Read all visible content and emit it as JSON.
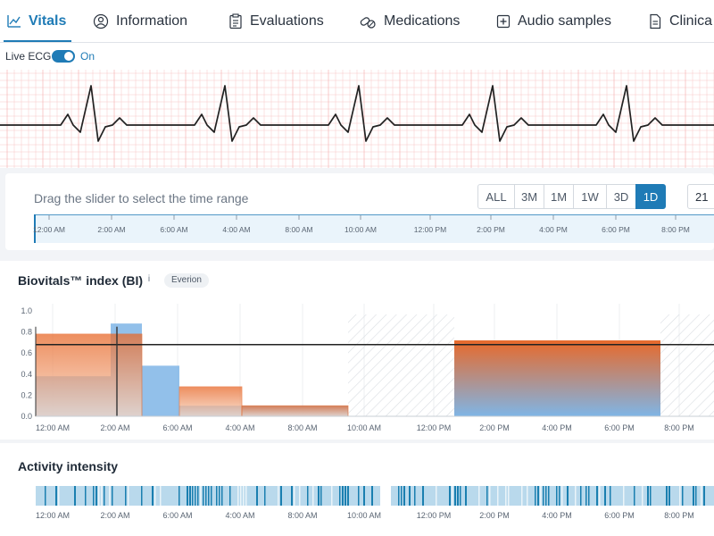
{
  "tabs": [
    {
      "label": "Vitals",
      "icon": "chart-line-icon",
      "active": true
    },
    {
      "label": "Information",
      "icon": "user-circle-icon",
      "active": false
    },
    {
      "label": "Evaluations",
      "icon": "clipboard-icon",
      "active": false
    },
    {
      "label": "Medications",
      "icon": "pills-icon",
      "active": false
    },
    {
      "label": "Audio samples",
      "icon": "audio-plus-icon",
      "active": false
    },
    {
      "label": "Clinica",
      "icon": "document-icon",
      "active": false
    }
  ],
  "live_ecg": {
    "label": "Live ECG",
    "state": "On",
    "enabled": true
  },
  "ecg_beats": 5,
  "range": {
    "hint": "Drag the slider to select the time range",
    "buttons": [
      "ALL",
      "3M",
      "1M",
      "1W",
      "3D",
      "1D"
    ],
    "active": "1D",
    "date_value": "21"
  },
  "time_axis": [
    "12:00 AM",
    "2:00 AM",
    "6:00 AM",
    "4:00 AM",
    "8:00 AM",
    "10:00 AM",
    "12:00 PM",
    "2:00 PM",
    "4:00 PM",
    "6:00 PM",
    "8:00 PM"
  ],
  "biovitals": {
    "title": "Biovitals™ index (BI)",
    "info": "i",
    "badge": "Everion",
    "chart_data": {
      "type": "bar",
      "y_ticks": [
        "1.0",
        "0.8",
        "0.6",
        "0.4",
        "0.2",
        "0.0"
      ],
      "ylim": [
        0,
        1.0
      ],
      "threshold": 0.68,
      "x_labels": [
        "12:00 AM",
        "2:00 AM",
        "6:00 AM",
        "4:00 AM",
        "8:00 AM",
        "10:00 AM",
        "12:00 PM",
        "2:00 PM",
        "4:00 PM",
        "6:00 PM",
        "8:00 PM"
      ],
      "blue_bars": [
        {
          "x0": 0,
          "x1": 1.2,
          "value": 0.38
        },
        {
          "x0": 1.2,
          "x1": 1.7,
          "value": 0.88
        },
        {
          "x0": 1.7,
          "x1": 2.3,
          "value": 0.48
        },
        {
          "x0": 2.3,
          "x1": 5.0,
          "value": 0.1
        },
        {
          "x0": 6.7,
          "x1": 10.0,
          "value": 0.7
        }
      ],
      "orange_bars": [
        {
          "x0": 0,
          "x1": 1.7,
          "value": 0.78
        },
        {
          "x0": 2.3,
          "x1": 3.3,
          "value": 0.28
        },
        {
          "x0": 3.3,
          "x1": 5.0,
          "value": 0.1
        },
        {
          "x0": 6.7,
          "x1": 10.0,
          "value": 0.72
        }
      ],
      "no_data": [
        {
          "x0": 5.0,
          "x1": 6.7
        },
        {
          "x0": 10.0,
          "x1": 11.5
        }
      ],
      "cursor_x": 1.3
    }
  },
  "activity": {
    "title": "Activity intensity",
    "x_labels": [
      "12:00 AM",
      "2:00 AM",
      "6:00 AM",
      "4:00 AM",
      "8:00 AM",
      "10:00 AM",
      "12:00 PM",
      "2:00 PM",
      "4:00 PM",
      "6:00 PM",
      "8:00 PM"
    ]
  },
  "colors": {
    "accent": "#1f7bb6",
    "ecg_grid": "#f6b8b8",
    "ecg_line": "#222222",
    "bar_blue": "#7fb5e6",
    "bar_orange": "#e8692a",
    "activity_dark": "#1a7fb0",
    "activity_light": "#b9d9ec"
  }
}
